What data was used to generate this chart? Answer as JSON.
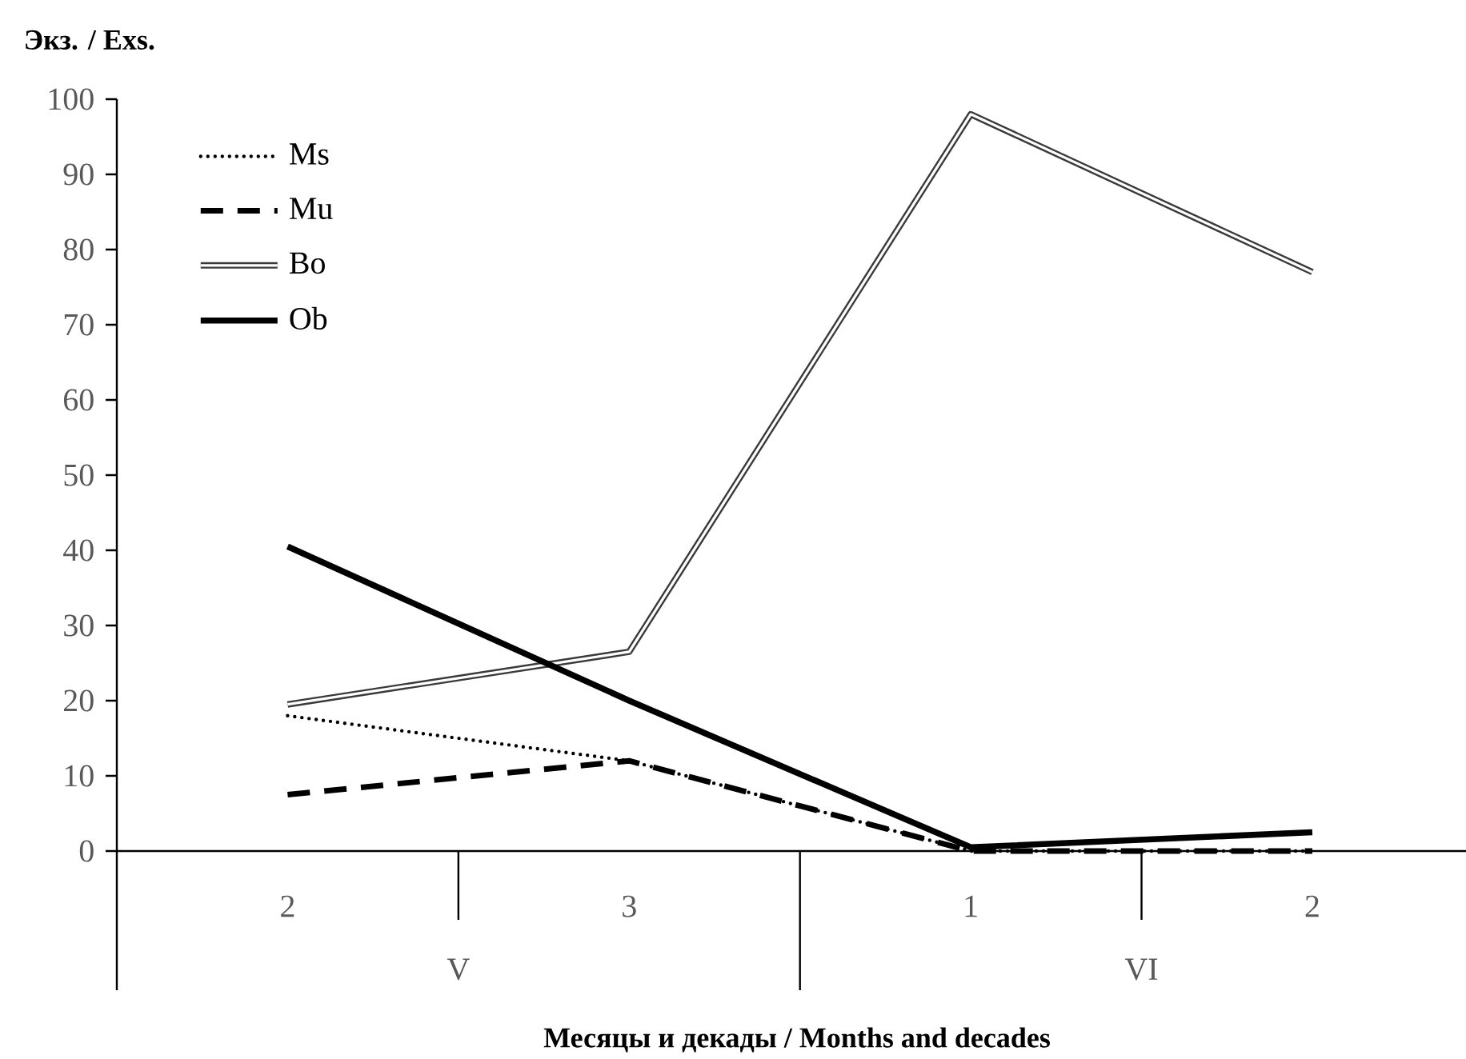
{
  "chart_data": {
    "type": "line",
    "ylabel": "Экз. / Exs.",
    "xlabel": "Месяцы и декады / Months and decades",
    "categories": [
      "2",
      "3",
      "1",
      "2"
    ],
    "annotations": [
      "V",
      "VI"
    ],
    "series": [
      {
        "name": "Ms",
        "color": "#000000",
        "line_style": "dotted",
        "values": [
          18,
          12,
          0,
          0
        ]
      },
      {
        "name": "Mu",
        "color": "#000000",
        "line_style": "dashed",
        "values": [
          7.5,
          12,
          0,
          0
        ]
      },
      {
        "name": "Bo",
        "color": "#3a3a3a",
        "line_style": "solid",
        "values": [
          19.5,
          26.5,
          98,
          77
        ]
      },
      {
        "name": "Ob",
        "color": "#000000",
        "line_style": "solid",
        "values": [
          40.5,
          20,
          0.5,
          2.5
        ]
      }
    ],
    "ylim": [
      0,
      100
    ],
    "yticks": [
      0,
      10,
      20,
      30,
      40,
      50,
      60,
      70,
      80,
      90,
      100
    ],
    "grid": false,
    "legend": "top left",
    "marker": "none"
  }
}
